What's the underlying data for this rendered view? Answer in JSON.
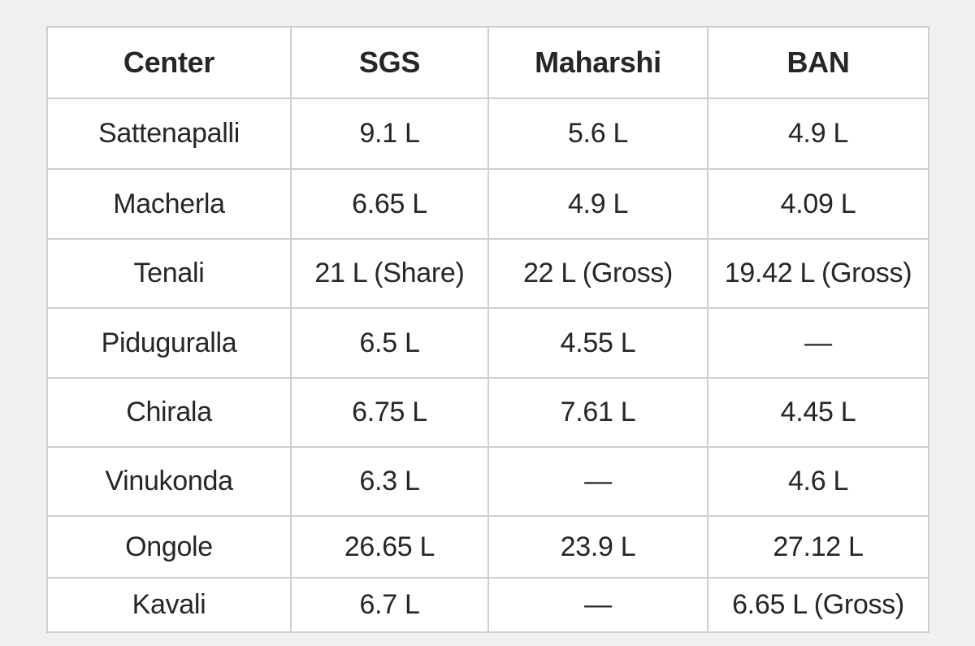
{
  "table": {
    "header": [
      "Center",
      "SGS",
      "Maharshi",
      "BAN"
    ],
    "rows": [
      [
        "Sattenapalli",
        "9.1 L",
        "5.6 L",
        "4.9 L"
      ],
      [
        "Macherla",
        "6.65 L",
        "4.9 L",
        "4.09 L"
      ],
      [
        "Tenali",
        "21 L (Share)",
        "22 L (Gross)",
        "19.42 L (Gross)"
      ],
      [
        "Piduguralla",
        "6.5 L",
        "4.55 L",
        "—"
      ],
      [
        "Chirala",
        "6.75 L",
        "7.61 L",
        "4.45 L"
      ],
      [
        "Vinukonda",
        "6.3 L",
        "—",
        "4.6 L"
      ],
      [
        "Ongole",
        "26.65 L",
        "23.9 L",
        "27.12 L"
      ],
      [
        "Kavali",
        "6.7 L",
        "—",
        "6.65 L (Gross)"
      ]
    ]
  }
}
